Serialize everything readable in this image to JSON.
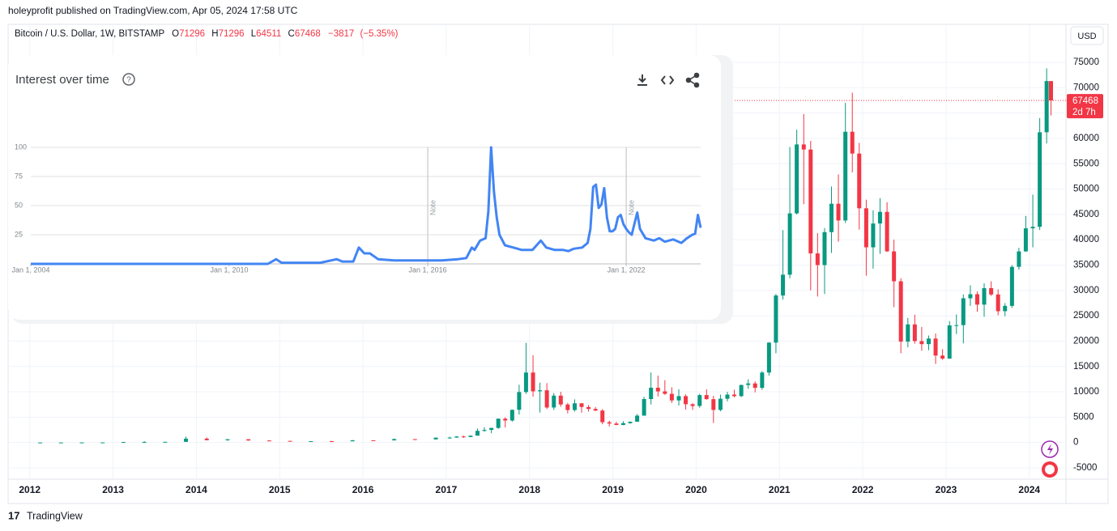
{
  "header": "holeyprofit published on TradingView.com, Apr 05, 2024 17:58 UTC",
  "footer": "TradingView",
  "chart_data": [
    {
      "type": "candlestick",
      "title": "Bitcoin / U.S. Dollar, 1W, BITSTAMP",
      "currency": "USD",
      "ohlc_letters": [
        "O",
        "H",
        "L",
        "C"
      ],
      "change": "−3817",
      "change_pct": "(−5.35%)",
      "countdown": "2d 7h",
      "up_color": "#089981",
      "down_color": "#f23645",
      "grid": true,
      "xlim": [
        2011.74,
        2024.44
      ],
      "xticks": [
        2012,
        2013,
        2014,
        2015,
        2016,
        2017,
        2018,
        2019,
        2020,
        2021,
        2022,
        2023,
        2024
      ],
      "ylim": [
        -7240,
        82500
      ],
      "yticks": [
        -5000,
        0,
        5000,
        10000,
        15000,
        20000,
        25000,
        30000,
        35000,
        40000,
        45000,
        50000,
        55000,
        60000,
        65000,
        70000,
        75000
      ],
      "x": [
        2012.125,
        2012.375,
        2012.625,
        2012.875,
        2013.125,
        2013.375,
        2013.625,
        2013.875,
        2014.125,
        2014.375,
        2014.625,
        2014.875,
        2015.125,
        2015.375,
        2015.625,
        2015.875,
        2016.125,
        2016.375,
        2016.625,
        2016.875,
        2017.042,
        2017.125,
        2017.208,
        2017.292,
        2017.375,
        2017.458,
        2017.542,
        2017.625,
        2017.708,
        2017.792,
        2017.875,
        2017.958,
        2018.042,
        2018.125,
        2018.208,
        2018.292,
        2018.375,
        2018.458,
        2018.542,
        2018.625,
        2018.708,
        2018.792,
        2018.875,
        2018.958,
        2019.042,
        2019.125,
        2019.208,
        2019.292,
        2019.375,
        2019.458,
        2019.542,
        2019.625,
        2019.708,
        2019.792,
        2019.875,
        2019.958,
        2020.042,
        2020.125,
        2020.208,
        2020.292,
        2020.375,
        2020.458,
        2020.542,
        2020.625,
        2020.708,
        2020.792,
        2020.875,
        2020.958,
        2021.042,
        2021.125,
        2021.208,
        2021.292,
        2021.375,
        2021.458,
        2021.542,
        2021.625,
        2021.708,
        2021.792,
        2021.875,
        2021.958,
        2022.042,
        2022.125,
        2022.208,
        2022.292,
        2022.375,
        2022.458,
        2022.542,
        2022.625,
        2022.708,
        2022.792,
        2022.875,
        2022.958,
        2023.042,
        2023.125,
        2023.208,
        2023.292,
        2023.375,
        2023.458,
        2023.542,
        2023.625,
        2023.708,
        2023.792,
        2023.875,
        2023.958,
        2024.042,
        2024.125,
        2024.208,
        2024.26
      ],
      "open": [
        5,
        5,
        6.6,
        12.4,
        13.5,
        93,
        97,
        128,
        760,
        450,
        640,
        390,
        320,
        245,
        263,
        236,
        430,
        416,
        670,
        610,
        963,
        970,
        1190,
        1080,
        1350,
        2300,
        2480,
        2870,
        4700,
        4340,
        6450,
        9950,
        13800,
        10100,
        10300,
        6900,
        9250,
        7500,
        6400,
        7730,
        7000,
        6620,
        6300,
        4000,
        3740,
        3460,
        3820,
        4100,
        5300,
        8570,
        10800,
        10080,
        9600,
        8300,
        9150,
        7550,
        7200,
        9350,
        8550,
        6420,
        8630,
        9450,
        9140,
        11350,
        11650,
        10780,
        13800,
        19700,
        29000,
        33100,
        45200,
        58800,
        57800,
        37300,
        35000,
        41500,
        47100,
        43800,
        61300,
        57000,
        46200,
        38500,
        43200,
        45500,
        37700,
        31800,
        19900,
        23300,
        20000,
        19400,
        20500,
        17150,
        16550,
        23100,
        23150,
        28450,
        29250,
        27200,
        30450,
        29200,
        25900,
        26950,
        34650,
        37700,
        42250,
        42550,
        61200,
        71296
      ],
      "high": [
        7,
        7,
        16,
        14,
        95,
        266,
        145,
        1163,
        1000,
        680,
        650,
        460,
        320,
        265,
        320,
        500,
        440,
        780,
        680,
        980,
        1150,
        1200,
        1350,
        1350,
        2760,
        3000,
        2920,
        4750,
        4980,
        6470,
        11400,
        19666,
        17200,
        11800,
        11700,
        9750,
        10000,
        7800,
        8500,
        7760,
        7400,
        7000,
        6600,
        4300,
        4100,
        4200,
        4120,
        5600,
        9000,
        13800,
        13200,
        12300,
        10900,
        10500,
        9500,
        7750,
        9600,
        10500,
        9200,
        9450,
        10000,
        10400,
        11400,
        12470,
        12050,
        14100,
        19800,
        29300,
        41900,
        58300,
        61700,
        64800,
        59500,
        41300,
        42300,
        50500,
        52900,
        67000,
        69000,
        59100,
        47900,
        45800,
        48200,
        47400,
        40000,
        32400,
        24600,
        25200,
        22800,
        21100,
        21500,
        18400,
        23950,
        25250,
        29200,
        31000,
        29800,
        31400,
        31800,
        30200,
        27500,
        35000,
        38400,
        44700,
        48900,
        64000,
        73800,
        71296
      ],
      "low": [
        4,
        4.5,
        6.5,
        10,
        13,
        65,
        68,
        120,
        420,
        340,
        360,
        300,
        166,
        215,
        200,
        235,
        350,
        415,
        470,
        600,
        750,
        915,
        900,
        1080,
        1350,
        2100,
        1830,
        2700,
        2970,
        4120,
        5500,
        9600,
        9050,
        5900,
        6600,
        6420,
        7050,
        5750,
        6100,
        5880,
        6100,
        6200,
        3600,
        3150,
        3400,
        3390,
        3700,
        4080,
        5300,
        7500,
        9080,
        9400,
        7800,
        7300,
        6500,
        6430,
        6850,
        8450,
        3850,
        6150,
        8120,
        8900,
        8980,
        10600,
        9880,
        10400,
        13200,
        17600,
        28200,
        32400,
        45000,
        47000,
        30000,
        28800,
        29300,
        37400,
        39600,
        43300,
        53300,
        42000,
        32900,
        34300,
        37200,
        37600,
        26700,
        17600,
        18800,
        19500,
        18100,
        18200,
        15500,
        16300,
        16500,
        21400,
        19550,
        26950,
        25800,
        24800,
        28900,
        25100,
        24900,
        26550,
        34100,
        37600,
        38500,
        41900,
        59000,
        64511
      ],
      "close": [
        5,
        6.6,
        12.4,
        13.5,
        93,
        97,
        128,
        760,
        450,
        640,
        390,
        320,
        245,
        263,
        236,
        430,
        416,
        670,
        610,
        963,
        970,
        1190,
        1080,
        1350,
        2300,
        2480,
        2870,
        4700,
        4340,
        6450,
        9950,
        13800,
        10100,
        10300,
        6900,
        9250,
        7500,
        6400,
        7730,
        7000,
        6620,
        6300,
        4000,
        3740,
        3460,
        3820,
        4100,
        5300,
        8570,
        10800,
        10080,
        9600,
        8300,
        9150,
        7550,
        7200,
        9350,
        8550,
        6420,
        8630,
        9450,
        9140,
        11350,
        11650,
        10780,
        13800,
        19700,
        29000,
        33100,
        45200,
        58800,
        57800,
        37300,
        35000,
        41500,
        47100,
        43800,
        61300,
        57000,
        46200,
        38500,
        43200,
        45500,
        37700,
        31800,
        19900,
        23300,
        20000,
        19400,
        20500,
        17150,
        16550,
        23100,
        23150,
        28450,
        29250,
        27200,
        30450,
        29200,
        25900,
        26950,
        34650,
        37700,
        42250,
        42550,
        61200,
        71300,
        67468
      ]
    },
    {
      "type": "line",
      "title": "Interest over time",
      "color": "#4285f4",
      "grid": true,
      "xlim": [
        "2004-01-01",
        "2024-04-01"
      ],
      "xticks": [
        {
          "value": "2004-01-01",
          "label": "Jan 1, 2004"
        },
        {
          "value": "2010-01-01",
          "label": "Jan 1, 2010"
        },
        {
          "value": "2016-01-01",
          "label": "Jan 1, 2016"
        },
        {
          "value": "2022-01-01",
          "label": "Jan 1, 2022"
        }
      ],
      "ylim": [
        0,
        100
      ],
      "yticks": [
        25,
        50,
        75,
        100
      ],
      "notes": [
        {
          "x": "2016-01-01",
          "label": "Note"
        },
        {
          "x": "2022-01-01",
          "label": "Note"
        }
      ],
      "x": [
        "2004-01-01",
        "2011-03-01",
        "2011-06-01",
        "2011-08-01",
        "2012-10-01",
        "2013-04-01",
        "2013-06-01",
        "2013-10-01",
        "2013-12-01",
        "2014-02-01",
        "2014-04-01",
        "2014-07-01",
        "2015-01-01",
        "2016-06-01",
        "2016-12-01",
        "2017-03-01",
        "2017-05-01",
        "2017-06-01",
        "2017-08-01",
        "2017-10-01",
        "2017-11-01",
        "2017-12-01",
        "2018-01-01",
        "2018-02-01",
        "2018-03-01",
        "2018-05-01",
        "2018-08-01",
        "2018-11-01",
        "2019-03-01",
        "2019-06-01",
        "2019-08-01",
        "2019-11-01",
        "2020-02-01",
        "2020-04-01",
        "2020-06-01",
        "2020-09-01",
        "2020-11-01",
        "2020-12-01",
        "2021-01-01",
        "2021-02-01",
        "2021-03-01",
        "2021-04-01",
        "2021-05-01",
        "2021-06-01",
        "2021-07-01",
        "2021-08-01",
        "2021-09-01",
        "2021-10-01",
        "2021-11-01",
        "2021-12-01",
        "2022-01-01",
        "2022-02-01",
        "2022-03-01",
        "2022-05-01",
        "2022-06-01",
        "2022-08-01",
        "2022-11-01",
        "2023-01-01",
        "2023-03-01",
        "2023-06-01",
        "2023-09-01",
        "2023-11-01",
        "2024-01-01",
        "2024-02-01",
        "2024-03-01",
        "2024-04-01"
      ],
      "values": [
        0,
        0,
        4,
        1,
        1,
        4,
        2,
        2,
        14,
        9,
        9,
        4,
        3,
        3,
        4,
        5,
        14,
        12,
        20,
        22,
        45,
        100,
        62,
        40,
        25,
        16,
        14,
        12,
        12,
        20,
        14,
        12,
        12,
        11,
        13,
        14,
        18,
        30,
        66,
        68,
        48,
        51,
        65,
        40,
        28,
        28,
        30,
        40,
        42,
        34,
        30,
        27,
        25,
        44,
        30,
        22,
        20,
        22,
        19,
        21,
        18,
        22,
        25,
        26,
        42,
        31
      ]
    }
  ]
}
